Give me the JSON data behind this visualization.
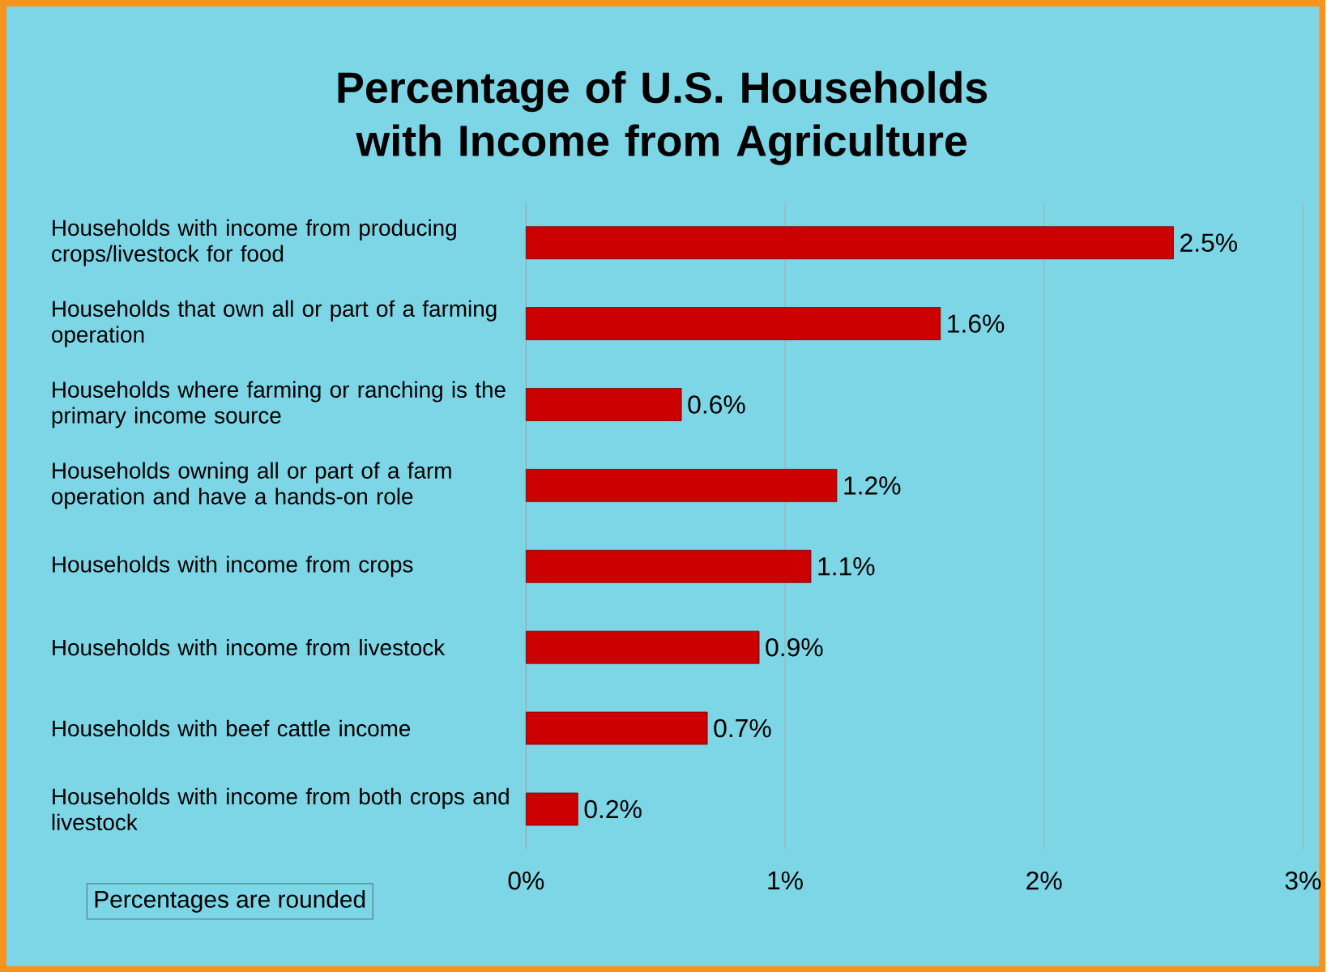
{
  "chart_data": {
    "type": "bar",
    "orientation": "horizontal",
    "title": "Percentage of U.S. Households with Income from Agriculture",
    "categories": [
      "Households with income from producing crops/livestock for food",
      "Households that own all or part of a farming operation",
      "Households where farming or ranching is the primary income source",
      "Households owning all or part of a farm operation and have a hands-on role",
      "Households with income from crops",
      "Households with income from livestock",
      "Households with beef cattle income",
      "Households with income from both crops and livestock"
    ],
    "values": [
      2.5,
      1.6,
      0.6,
      1.2,
      1.1,
      0.9,
      0.7,
      0.2
    ],
    "value_labels": [
      "2.5%",
      "1.6%",
      "0.6%",
      "1.2%",
      "1.1%",
      "0.9%",
      "0.7%",
      "0.2%"
    ],
    "color": "#cc0000",
    "xlim": [
      0,
      3
    ],
    "xticks": [
      {
        "value": 0,
        "label": "0%"
      },
      {
        "value": 1,
        "label": "1%"
      },
      {
        "value": 2,
        "label": "2%"
      },
      {
        "value": 3,
        "label": "3%"
      }
    ],
    "grid": "x",
    "annotations": [
      "Percentages are rounded"
    ]
  }
}
